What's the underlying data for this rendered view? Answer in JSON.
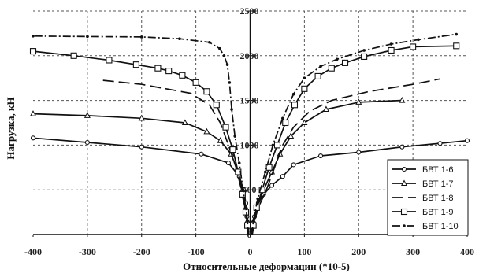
{
  "chart_data": {
    "type": "line",
    "xlabel": "Относительные деформации (*10-5)",
    "ylabel": "Нагрузка, кН",
    "xlim": [
      -400,
      400
    ],
    "ylim": [
      0,
      2500
    ],
    "xticks": [
      -400,
      -300,
      -200,
      -100,
      0,
      100,
      200,
      300,
      400
    ],
    "yticks": [
      0,
      500,
      1000,
      1500,
      2000,
      2500
    ],
    "grid": "dashed",
    "legend_position": "lower-right",
    "series": [
      {
        "name": "БВТ 1-6",
        "marker": "circle",
        "dash": "",
        "left": [
          [
            -3,
            0
          ],
          [
            -3,
            100
          ],
          [
            -6,
            200
          ],
          [
            -8,
            350
          ],
          [
            -12,
            500
          ],
          [
            -20,
            650
          ],
          [
            -40,
            800
          ],
          [
            -90,
            900
          ],
          [
            -200,
            980
          ],
          [
            -300,
            1030
          ],
          [
            -400,
            1080
          ]
        ],
        "right": [
          [
            2,
            0
          ],
          [
            4,
            100
          ],
          [
            8,
            200
          ],
          [
            15,
            350
          ],
          [
            25,
            450
          ],
          [
            40,
            550
          ],
          [
            60,
            650
          ],
          [
            80,
            780
          ],
          [
            130,
            880
          ],
          [
            200,
            920
          ],
          [
            280,
            980
          ],
          [
            350,
            1020
          ],
          [
            400,
            1050
          ]
        ]
      },
      {
        "name": "БВТ 1-7",
        "marker": "triangle",
        "dash": "",
        "left": [
          [
            -3,
            0
          ],
          [
            -5,
            150
          ],
          [
            -8,
            300
          ],
          [
            -14,
            500
          ],
          [
            -22,
            700
          ],
          [
            -35,
            900
          ],
          [
            -55,
            1050
          ],
          [
            -80,
            1150
          ],
          [
            -120,
            1250
          ],
          [
            -200,
            1300
          ],
          [
            -300,
            1330
          ],
          [
            -400,
            1350
          ]
        ],
        "right": [
          [
            3,
            0
          ],
          [
            6,
            150
          ],
          [
            12,
            300
          ],
          [
            25,
            500
          ],
          [
            40,
            700
          ],
          [
            55,
            900
          ],
          [
            75,
            1100
          ],
          [
            100,
            1250
          ],
          [
            140,
            1400
          ],
          [
            200,
            1480
          ],
          [
            280,
            1500
          ]
        ]
      },
      {
        "name": "БВТ 1-8",
        "marker": "none",
        "dash": "14 6",
        "left": [
          [
            -4,
            0
          ],
          [
            -6,
            150
          ],
          [
            -10,
            300
          ],
          [
            -16,
            500
          ],
          [
            -26,
            750
          ],
          [
            -40,
            1000
          ],
          [
            -55,
            1250
          ],
          [
            -75,
            1450
          ],
          [
            -110,
            1580
          ],
          [
            -200,
            1680
          ],
          [
            -280,
            1730
          ]
        ],
        "right": [
          [
            4,
            0
          ],
          [
            8,
            150
          ],
          [
            15,
            300
          ],
          [
            30,
            500
          ],
          [
            45,
            750
          ],
          [
            60,
            1000
          ],
          [
            80,
            1200
          ],
          [
            110,
            1380
          ],
          [
            150,
            1500
          ],
          [
            220,
            1600
          ],
          [
            300,
            1680
          ],
          [
            350,
            1740
          ]
        ]
      },
      {
        "name": "БВТ 1-9",
        "marker": "square",
        "dash": "",
        "left": [
          [
            -3,
            0
          ],
          [
            -5,
            100
          ],
          [
            -8,
            250
          ],
          [
            -14,
            450
          ],
          [
            -22,
            700
          ],
          [
            -32,
            950
          ],
          [
            -45,
            1200
          ],
          [
            -62,
            1450
          ],
          [
            -80,
            1600
          ],
          [
            -100,
            1700
          ],
          [
            -125,
            1780
          ],
          [
            -150,
            1830
          ],
          [
            -170,
            1860
          ],
          [
            -210,
            1900
          ],
          [
            -260,
            1950
          ],
          [
            -325,
            2000
          ],
          [
            -400,
            2050
          ]
        ],
        "right": [
          [
            3,
            0
          ],
          [
            6,
            100
          ],
          [
            12,
            300
          ],
          [
            22,
            500
          ],
          [
            35,
            750
          ],
          [
            50,
            1000
          ],
          [
            65,
            1250
          ],
          [
            82,
            1450
          ],
          [
            100,
            1630
          ],
          [
            125,
            1770
          ],
          [
            150,
            1860
          ],
          [
            175,
            1920
          ],
          [
            210,
            1990
          ],
          [
            260,
            2060
          ],
          [
            300,
            2100
          ],
          [
            380,
            2110
          ]
        ]
      },
      {
        "name": "БВТ 1-10",
        "marker": "dot",
        "dash": "10 3 2 3",
        "left": [
          [
            -3,
            0
          ],
          [
            -5,
            150
          ],
          [
            -8,
            300
          ],
          [
            -13,
            500
          ],
          [
            -20,
            800
          ],
          [
            -28,
            1100
          ],
          [
            -34,
            1400
          ],
          [
            -38,
            1700
          ],
          [
            -42,
            1900
          ],
          [
            -48,
            2000
          ],
          [
            -56,
            2080
          ],
          [
            -75,
            2150
          ],
          [
            -130,
            2190
          ],
          [
            -200,
            2210
          ],
          [
            -300,
            2215
          ],
          [
            -400,
            2220
          ]
        ],
        "right": [
          [
            3,
            0
          ],
          [
            6,
            150
          ],
          [
            14,
            400
          ],
          [
            28,
            700
          ],
          [
            42,
            1000
          ],
          [
            60,
            1300
          ],
          [
            80,
            1570
          ],
          [
            100,
            1750
          ],
          [
            130,
            1880
          ],
          [
            160,
            1960
          ],
          [
            210,
            2060
          ],
          [
            260,
            2130
          ],
          [
            310,
            2180
          ],
          [
            380,
            2240
          ]
        ]
      }
    ]
  }
}
